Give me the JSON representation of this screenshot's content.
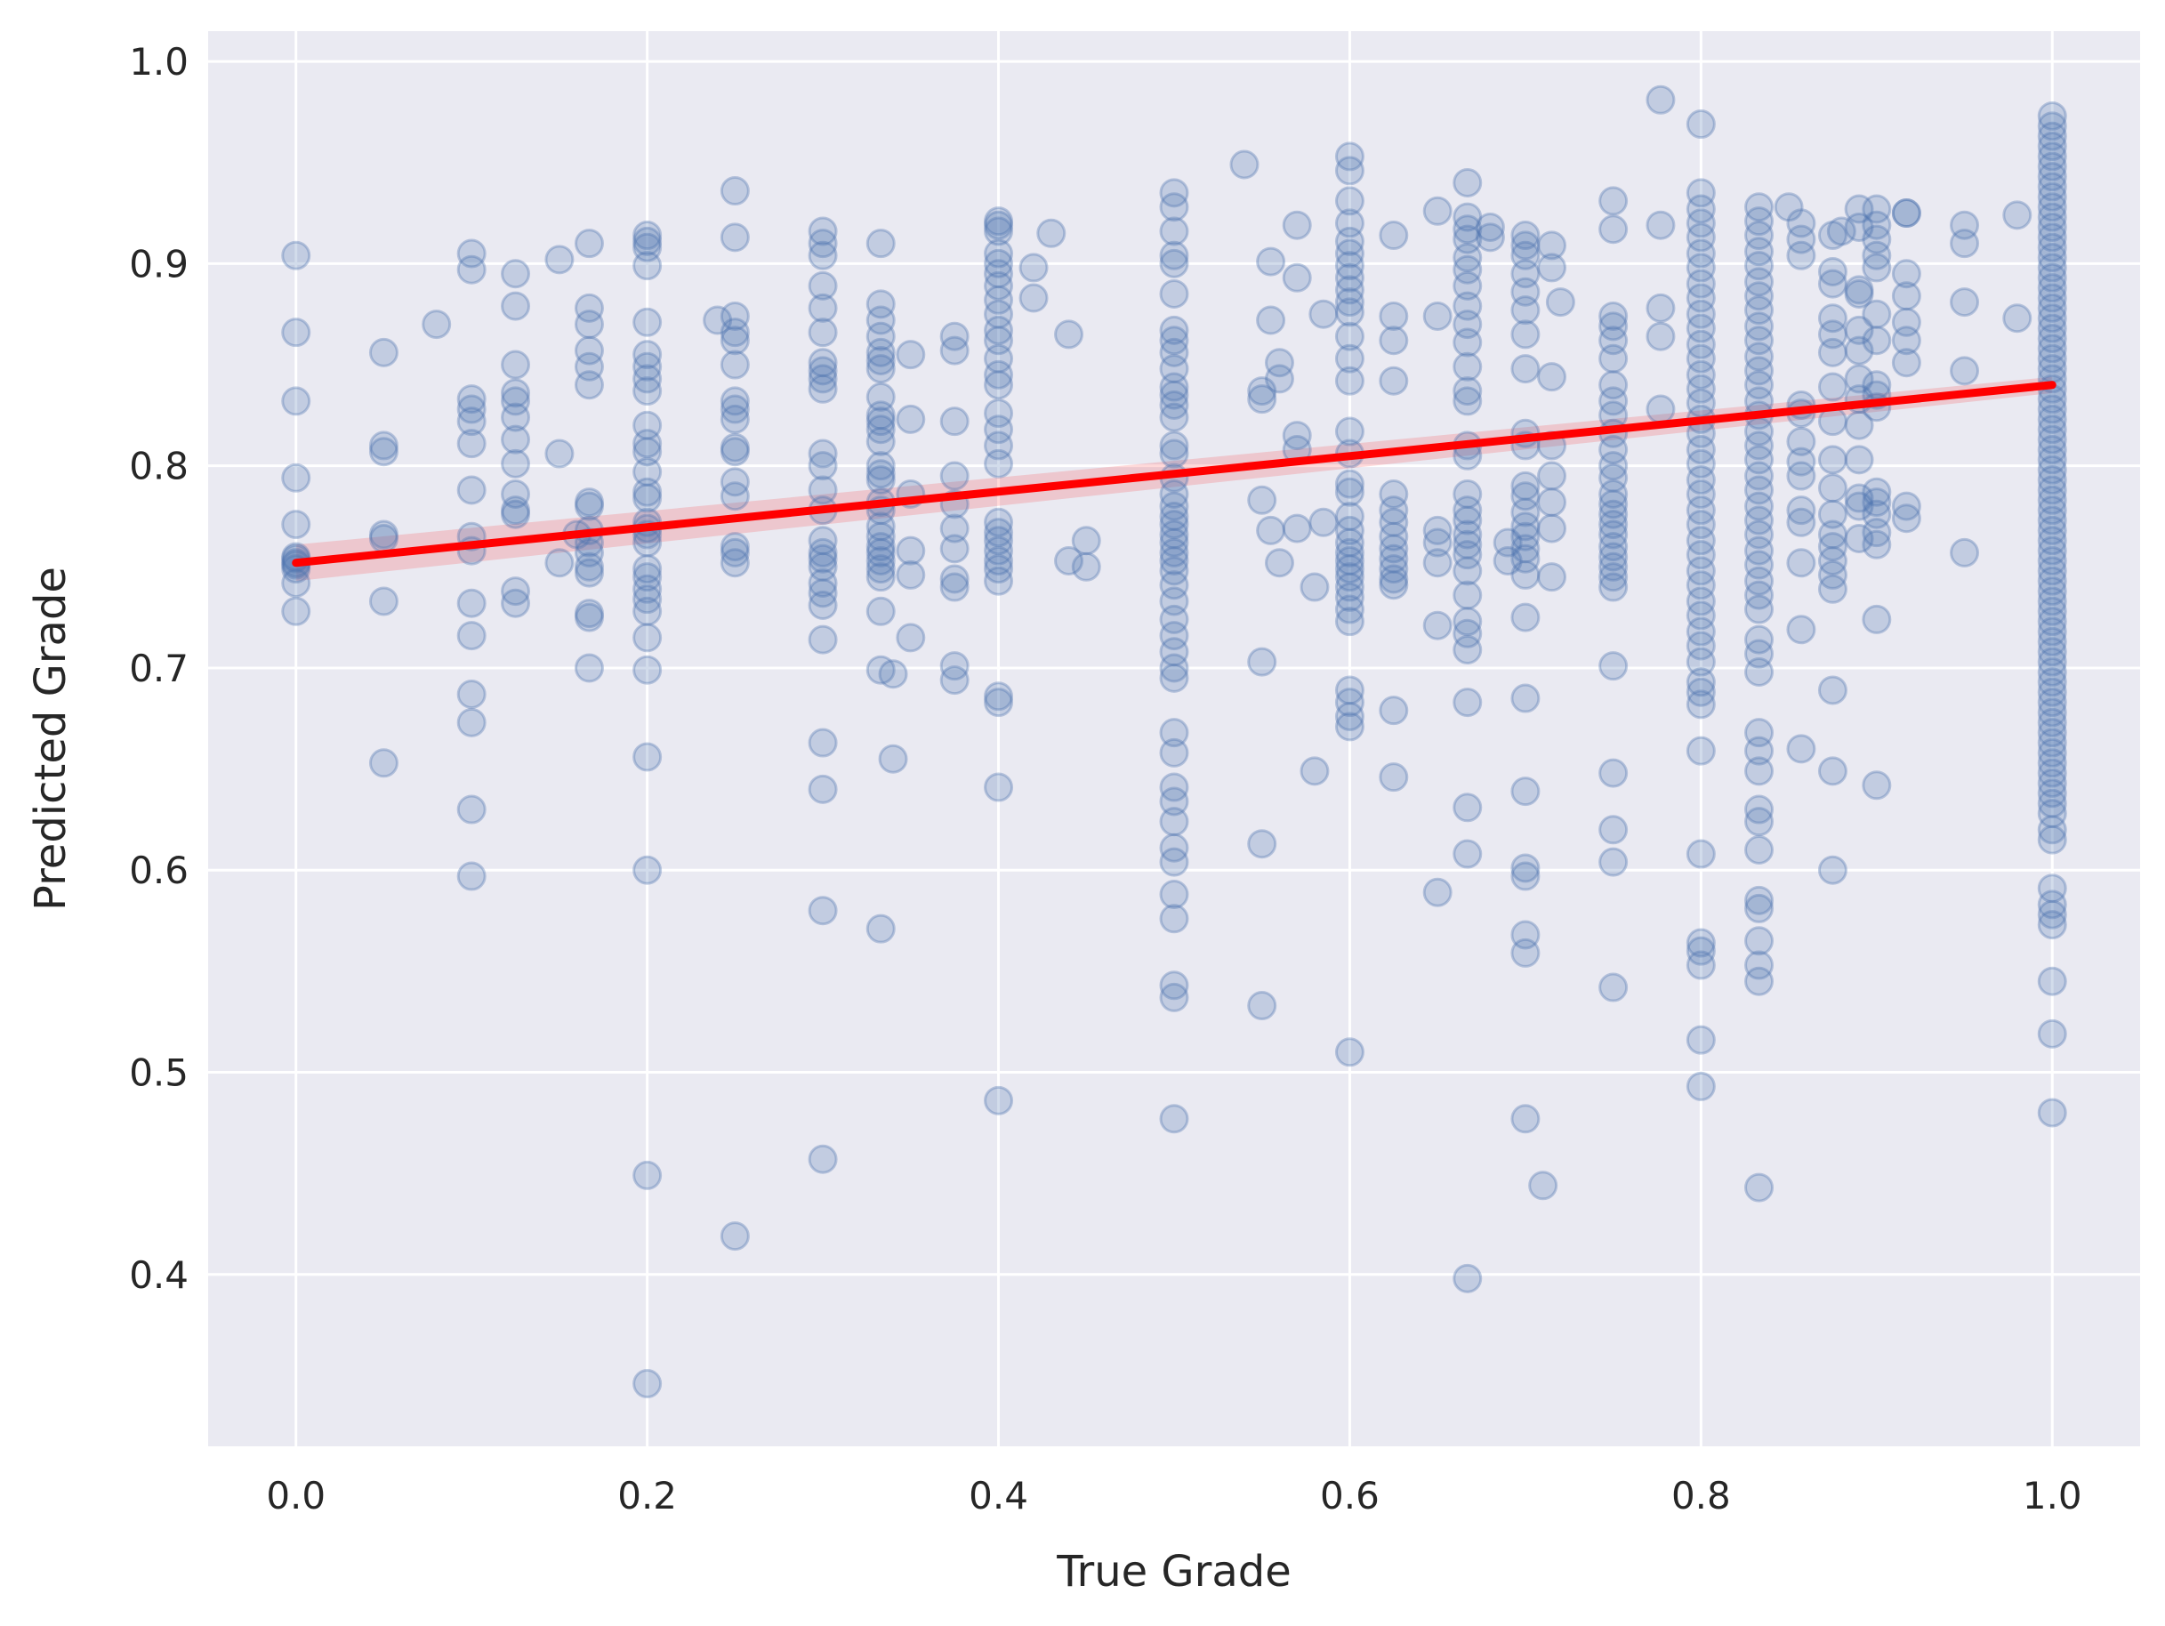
{
  "chart_data": {
    "type": "scatter",
    "title": "",
    "xlabel": "True Grade",
    "ylabel": "Predicted Grade",
    "xlim": [
      -0.05,
      1.05
    ],
    "ylim": [
      0.315,
      1.015
    ],
    "xticks": [
      "0.0",
      "0.2",
      "0.4",
      "0.6",
      "0.8",
      "1.0"
    ],
    "yticks": [
      "0.4",
      "0.5",
      "0.6",
      "0.7",
      "0.8",
      "0.9",
      "1.0"
    ],
    "grid": true,
    "background": "#EAEAF2",
    "point_color": "#4C72B0",
    "point_alpha": 0.25,
    "regression": {
      "color": "#FF0000",
      "intercept": 0.752,
      "slope": 0.088,
      "x_range": [
        0.0,
        1.0
      ],
      "ci_halfwidth": [
        0.009,
        0.004
      ]
    },
    "columns": [
      {
        "x": 0.0,
        "y": [
          0.904,
          0.866,
          0.832,
          0.794,
          0.771,
          0.755,
          0.754,
          0.752,
          0.751,
          0.749,
          0.742,
          0.728
        ]
      },
      {
        "x": 0.05,
        "y": [
          0.856,
          0.81,
          0.807,
          0.766,
          0.764,
          0.733,
          0.653
        ]
      },
      {
        "x": 0.08,
        "y": [
          0.87
        ]
      },
      {
        "x": 0.1,
        "y": [
          0.905,
          0.897,
          0.833,
          0.828,
          0.822,
          0.811,
          0.788,
          0.765,
          0.758,
          0.732,
          0.716,
          0.687,
          0.673,
          0.63,
          0.597
        ]
      },
      {
        "x": 0.125,
        "y": [
          0.895,
          0.879,
          0.85,
          0.836,
          0.832,
          0.824,
          0.813,
          0.801,
          0.786,
          0.778,
          0.776,
          0.738,
          0.732
        ]
      },
      {
        "x": 0.15,
        "y": [
          0.902,
          0.806,
          0.752
        ]
      },
      {
        "x": 0.16,
        "y": [
          0.766
        ]
      },
      {
        "x": 0.167,
        "y": [
          0.91,
          0.878,
          0.87,
          0.857,
          0.849,
          0.84,
          0.782,
          0.78,
          0.768,
          0.762,
          0.757,
          0.75,
          0.747,
          0.727,
          0.725,
          0.7
        ]
      },
      {
        "x": 0.2,
        "y": [
          0.914,
          0.911,
          0.908,
          0.899,
          0.871,
          0.855,
          0.849,
          0.843,
          0.837,
          0.82,
          0.811,
          0.807,
          0.797,
          0.787,
          0.784,
          0.772,
          0.769,
          0.766,
          0.762,
          0.749,
          0.745,
          0.739,
          0.734,
          0.728,
          0.715,
          0.699,
          0.656,
          0.6,
          0.449,
          0.346
        ]
      },
      {
        "x": 0.24,
        "y": [
          0.872
        ]
      },
      {
        "x": 0.25,
        "y": [
          0.936,
          0.913,
          0.874,
          0.866,
          0.862,
          0.85,
          0.832,
          0.828,
          0.823,
          0.809,
          0.807,
          0.792,
          0.785,
          0.76,
          0.757,
          0.752,
          0.419
        ]
      },
      {
        "x": 0.3,
        "y": [
          0.916,
          0.91,
          0.904,
          0.889,
          0.878,
          0.866,
          0.851,
          0.847,
          0.843,
          0.838,
          0.806,
          0.8,
          0.788,
          0.778,
          0.763,
          0.757,
          0.754,
          0.75,
          0.742,
          0.737,
          0.731,
          0.714,
          0.663,
          0.64,
          0.58,
          0.457
        ]
      },
      {
        "x": 0.333,
        "y": [
          0.91,
          0.88,
          0.872,
          0.864,
          0.856,
          0.852,
          0.848,
          0.834,
          0.825,
          0.822,
          0.818,
          0.812,
          0.8,
          0.796,
          0.793,
          0.782,
          0.778,
          0.77,
          0.765,
          0.76,
          0.757,
          0.753,
          0.749,
          0.745,
          0.728,
          0.699,
          0.571
        ]
      },
      {
        "x": 0.34,
        "y": [
          0.697,
          0.655
        ]
      },
      {
        "x": 0.35,
        "y": [
          0.855,
          0.823,
          0.786,
          0.758,
          0.746,
          0.715
        ]
      },
      {
        "x": 0.375,
        "y": [
          0.864,
          0.857,
          0.822,
          0.795,
          0.781,
          0.769,
          0.759,
          0.744,
          0.74,
          0.701,
          0.694
        ]
      },
      {
        "x": 0.4,
        "y": [
          0.921,
          0.919,
          0.916,
          0.905,
          0.9,
          0.895,
          0.889,
          0.882,
          0.875,
          0.867,
          0.862,
          0.853,
          0.845,
          0.84,
          0.826,
          0.818,
          0.81,
          0.801,
          0.772,
          0.767,
          0.763,
          0.758,
          0.753,
          0.749,
          0.743,
          0.686,
          0.683,
          0.641,
          0.486
        ]
      },
      {
        "x": 0.42,
        "y": [
          0.898,
          0.883
        ]
      },
      {
        "x": 0.43,
        "y": [
          0.915
        ]
      },
      {
        "x": 0.44,
        "y": [
          0.865,
          0.753
        ]
      },
      {
        "x": 0.45,
        "y": [
          0.763,
          0.75
        ]
      },
      {
        "x": 0.5,
        "y": [
          0.935,
          0.928,
          0.916,
          0.904,
          0.9,
          0.885,
          0.867,
          0.862,
          0.856,
          0.848,
          0.839,
          0.835,
          0.83,
          0.824,
          0.81,
          0.806,
          0.794,
          0.786,
          0.78,
          0.775,
          0.771,
          0.766,
          0.762,
          0.757,
          0.753,
          0.748,
          0.741,
          0.733,
          0.724,
          0.716,
          0.708,
          0.7,
          0.695,
          0.668,
          0.658,
          0.641,
          0.634,
          0.624,
          0.611,
          0.604,
          0.588,
          0.576,
          0.543,
          0.537,
          0.477
        ]
      },
      {
        "x": 0.54,
        "y": [
          0.949
        ]
      },
      {
        "x": 0.55,
        "y": [
          0.837,
          0.833,
          0.783,
          0.703,
          0.613,
          0.533
        ]
      },
      {
        "x": 0.555,
        "y": [
          0.901,
          0.872,
          0.768
        ]
      },
      {
        "x": 0.56,
        "y": [
          0.851,
          0.843,
          0.752
        ]
      },
      {
        "x": 0.57,
        "y": [
          0.919,
          0.893,
          0.815,
          0.808,
          0.769
        ]
      },
      {
        "x": 0.58,
        "y": [
          0.74,
          0.649
        ]
      },
      {
        "x": 0.585,
        "y": [
          0.875,
          0.772
        ]
      },
      {
        "x": 0.6,
        "y": [
          0.953,
          0.946,
          0.931,
          0.92,
          0.911,
          0.905,
          0.899,
          0.893,
          0.887,
          0.881,
          0.876,
          0.864,
          0.853,
          0.842,
          0.817,
          0.806,
          0.791,
          0.787,
          0.775,
          0.768,
          0.762,
          0.757,
          0.753,
          0.749,
          0.745,
          0.74,
          0.735,
          0.729,
          0.723,
          0.689,
          0.683,
          0.676,
          0.671,
          0.51
        ]
      },
      {
        "x": 0.625,
        "y": [
          0.914,
          0.874,
          0.862,
          0.842,
          0.786,
          0.778,
          0.772,
          0.765,
          0.759,
          0.754,
          0.749,
          0.744,
          0.741,
          0.679,
          0.646
        ]
      },
      {
        "x": 0.65,
        "y": [
          0.926,
          0.874,
          0.768,
          0.762,
          0.752,
          0.721,
          0.589
        ]
      },
      {
        "x": 0.667,
        "y": [
          0.94,
          0.923,
          0.917,
          0.912,
          0.903,
          0.897,
          0.889,
          0.879,
          0.87,
          0.861,
          0.849,
          0.837,
          0.832,
          0.81,
          0.805,
          0.786,
          0.778,
          0.773,
          0.766,
          0.761,
          0.756,
          0.748,
          0.736,
          0.723,
          0.717,
          0.709,
          0.683,
          0.631,
          0.608,
          0.398
        ]
      },
      {
        "x": 0.68,
        "y": [
          0.918,
          0.913
        ]
      },
      {
        "x": 0.69,
        "y": [
          0.762,
          0.753
        ]
      },
      {
        "x": 0.7,
        "y": [
          0.914,
          0.909,
          0.904,
          0.895,
          0.886,
          0.877,
          0.865,
          0.848,
          0.816,
          0.81,
          0.79,
          0.785,
          0.777,
          0.77,
          0.765,
          0.759,
          0.754,
          0.746,
          0.725,
          0.685,
          0.639,
          0.601,
          0.597,
          0.568,
          0.559,
          0.477
        ]
      },
      {
        "x": 0.71,
        "y": [
          0.444
        ]
      },
      {
        "x": 0.715,
        "y": [
          0.909,
          0.898,
          0.844,
          0.81,
          0.795,
          0.782,
          0.769,
          0.745
        ]
      },
      {
        "x": 0.72,
        "y": [
          0.881
        ]
      },
      {
        "x": 0.75,
        "y": [
          0.931,
          0.917,
          0.874,
          0.869,
          0.862,
          0.853,
          0.84,
          0.832,
          0.825,
          0.816,
          0.808,
          0.8,
          0.794,
          0.786,
          0.781,
          0.776,
          0.771,
          0.766,
          0.76,
          0.755,
          0.75,
          0.745,
          0.74,
          0.701,
          0.648,
          0.62,
          0.604,
          0.542
        ]
      },
      {
        "x": 0.777,
        "y": [
          0.981,
          0.919,
          0.878,
          0.864,
          0.828
        ]
      },
      {
        "x": 0.8,
        "y": [
          0.969,
          0.935,
          0.927,
          0.92,
          0.913,
          0.905,
          0.898,
          0.89,
          0.883,
          0.875,
          0.868,
          0.86,
          0.853,
          0.845,
          0.838,
          0.831,
          0.823,
          0.816,
          0.808,
          0.801,
          0.793,
          0.786,
          0.778,
          0.771,
          0.763,
          0.756,
          0.748,
          0.741,
          0.733,
          0.726,
          0.718,
          0.711,
          0.703,
          0.693,
          0.688,
          0.682,
          0.659,
          0.608,
          0.564,
          0.56,
          0.553,
          0.516,
          0.493
        ]
      },
      {
        "x": 0.833,
        "y": [
          0.928,
          0.921,
          0.914,
          0.906,
          0.899,
          0.891,
          0.884,
          0.877,
          0.869,
          0.862,
          0.854,
          0.847,
          0.84,
          0.832,
          0.825,
          0.817,
          0.81,
          0.803,
          0.795,
          0.788,
          0.78,
          0.773,
          0.766,
          0.758,
          0.751,
          0.743,
          0.736,
          0.729,
          0.714,
          0.707,
          0.698,
          0.668,
          0.659,
          0.649,
          0.63,
          0.624,
          0.61,
          0.585,
          0.581,
          0.565,
          0.553,
          0.545,
          0.443
        ]
      },
      {
        "x": 0.85,
        "y": [
          0.928
        ]
      },
      {
        "x": 0.857,
        "y": [
          0.92,
          0.912,
          0.904,
          0.83,
          0.826,
          0.812,
          0.802,
          0.795,
          0.778,
          0.772,
          0.752,
          0.719,
          0.66
        ]
      },
      {
        "x": 0.875,
        "y": [
          0.914,
          0.896,
          0.89,
          0.873,
          0.865,
          0.856,
          0.839,
          0.822,
          0.803,
          0.789,
          0.776,
          0.766,
          0.76,
          0.753,
          0.746,
          0.739,
          0.689,
          0.649,
          0.6
        ]
      },
      {
        "x": 0.88,
        "y": [
          0.916
        ]
      },
      {
        "x": 0.89,
        "y": [
          0.927,
          0.918,
          0.887,
          0.885,
          0.867,
          0.857,
          0.843,
          0.833,
          0.82,
          0.803,
          0.784,
          0.78,
          0.764
        ]
      },
      {
        "x": 0.9,
        "y": [
          0.927,
          0.919,
          0.912,
          0.904,
          0.898,
          0.875,
          0.862,
          0.84,
          0.835,
          0.829,
          0.787,
          0.782,
          0.776,
          0.767,
          0.761,
          0.724,
          0.642
        ]
      },
      {
        "x": 0.917,
        "y": [
          0.925,
          0.925,
          0.895,
          0.884,
          0.871,
          0.862,
          0.851,
          0.78,
          0.774
        ]
      },
      {
        "x": 0.95,
        "y": [
          0.919,
          0.91,
          0.881,
          0.847,
          0.757
        ]
      },
      {
        "x": 0.98,
        "y": [
          0.924,
          0.873
        ]
      },
      {
        "x": 1.0,
        "y": [
          0.973,
          0.968,
          0.963,
          0.958,
          0.953,
          0.948,
          0.943,
          0.938,
          0.933,
          0.928,
          0.923,
          0.918,
          0.913,
          0.908,
          0.903,
          0.898,
          0.893,
          0.888,
          0.883,
          0.878,
          0.873,
          0.868,
          0.863,
          0.858,
          0.853,
          0.848,
          0.843,
          0.838,
          0.833,
          0.828,
          0.823,
          0.818,
          0.813,
          0.808,
          0.803,
          0.798,
          0.793,
          0.788,
          0.783,
          0.778,
          0.773,
          0.768,
          0.763,
          0.758,
          0.753,
          0.748,
          0.743,
          0.738,
          0.733,
          0.728,
          0.723,
          0.718,
          0.713,
          0.708,
          0.703,
          0.698,
          0.693,
          0.688,
          0.683,
          0.678,
          0.673,
          0.668,
          0.663,
          0.658,
          0.653,
          0.648,
          0.643,
          0.638,
          0.633,
          0.628,
          0.62,
          0.615,
          0.591,
          0.583,
          0.578,
          0.573,
          0.545,
          0.519,
          0.48
        ]
      }
    ]
  }
}
